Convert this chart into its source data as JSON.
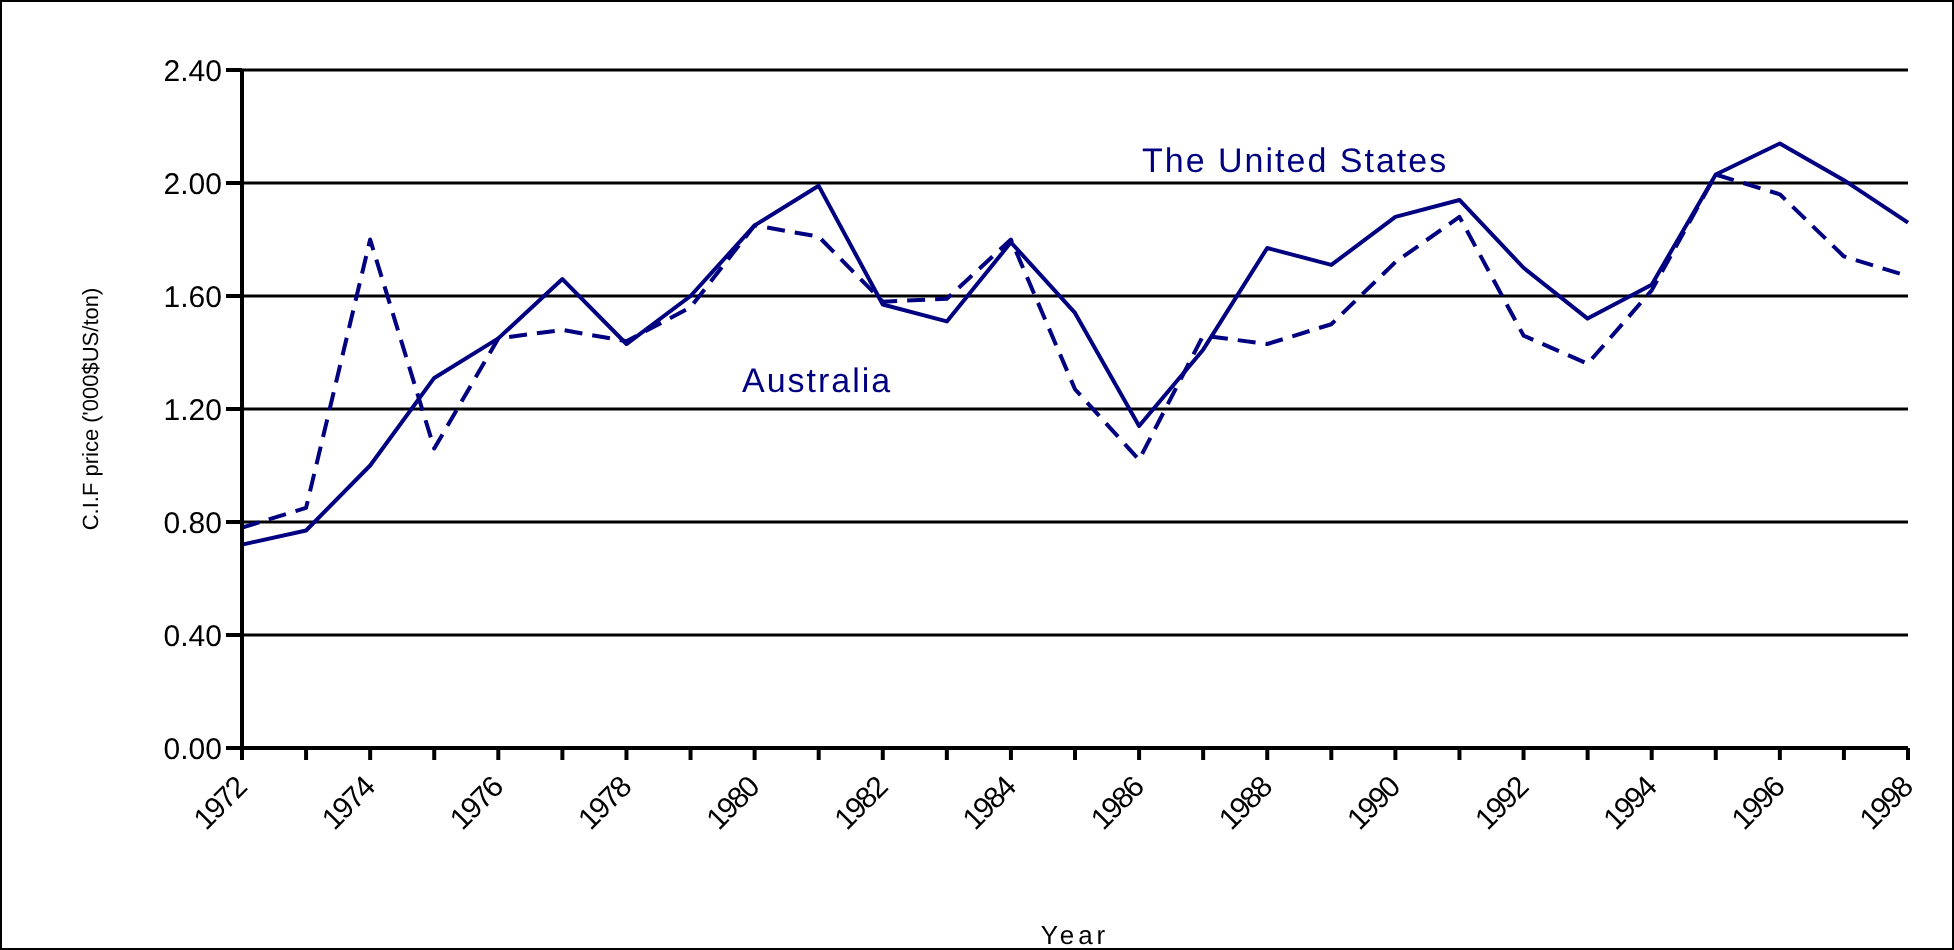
{
  "chart_data": {
    "type": "line",
    "xlabel": "Year",
    "ylabel": "C.I.F price ('000$US/ton)",
    "categories": [
      "1972",
      null,
      "1974",
      null,
      "1976",
      null,
      "1978",
      null,
      "1980",
      null,
      "1982",
      null,
      "1984",
      null,
      "1986",
      null,
      "1988",
      null,
      "1990",
      null,
      "1992",
      null,
      "1994",
      null,
      "1996",
      null,
      "1998"
    ],
    "series": [
      {
        "name": "The United States",
        "color": "#000080",
        "line_style": "solid",
        "values": [
          0.72,
          0.77,
          1.0,
          1.31,
          1.45,
          1.66,
          1.43,
          1.6,
          1.85,
          1.99,
          1.57,
          1.51,
          1.79,
          1.54,
          1.14,
          1.41,
          1.77,
          1.71,
          1.88,
          1.94,
          1.7,
          1.52,
          1.64,
          2.03,
          2.14,
          2.01,
          1.86
        ]
      },
      {
        "name": "Australia",
        "color": "#000080",
        "line_style": "dashed",
        "values": [
          0.78,
          0.85,
          1.8,
          1.06,
          1.45,
          1.48,
          1.44,
          1.56,
          1.85,
          1.81,
          1.58,
          1.59,
          1.8,
          1.27,
          1.02,
          1.46,
          1.43,
          1.5,
          1.72,
          1.88,
          1.46,
          1.36,
          1.62,
          2.03,
          1.96,
          1.74,
          1.67
        ]
      }
    ],
    "ylim": [
      0,
      2.4
    ],
    "yticks": [
      {
        "value": 0,
        "label": "0.00"
      },
      {
        "value": 0.4,
        "label": "0.40"
      },
      {
        "value": 0.8,
        "label": "0.80"
      },
      {
        "value": 1.2,
        "label": "1.20"
      },
      {
        "value": 1.6,
        "label": "1.60"
      },
      {
        "value": 2.0,
        "label": "2.00"
      },
      {
        "value": 2.4,
        "label": "2.40"
      }
    ],
    "grid": "y",
    "legend": false,
    "marker": "none"
  }
}
